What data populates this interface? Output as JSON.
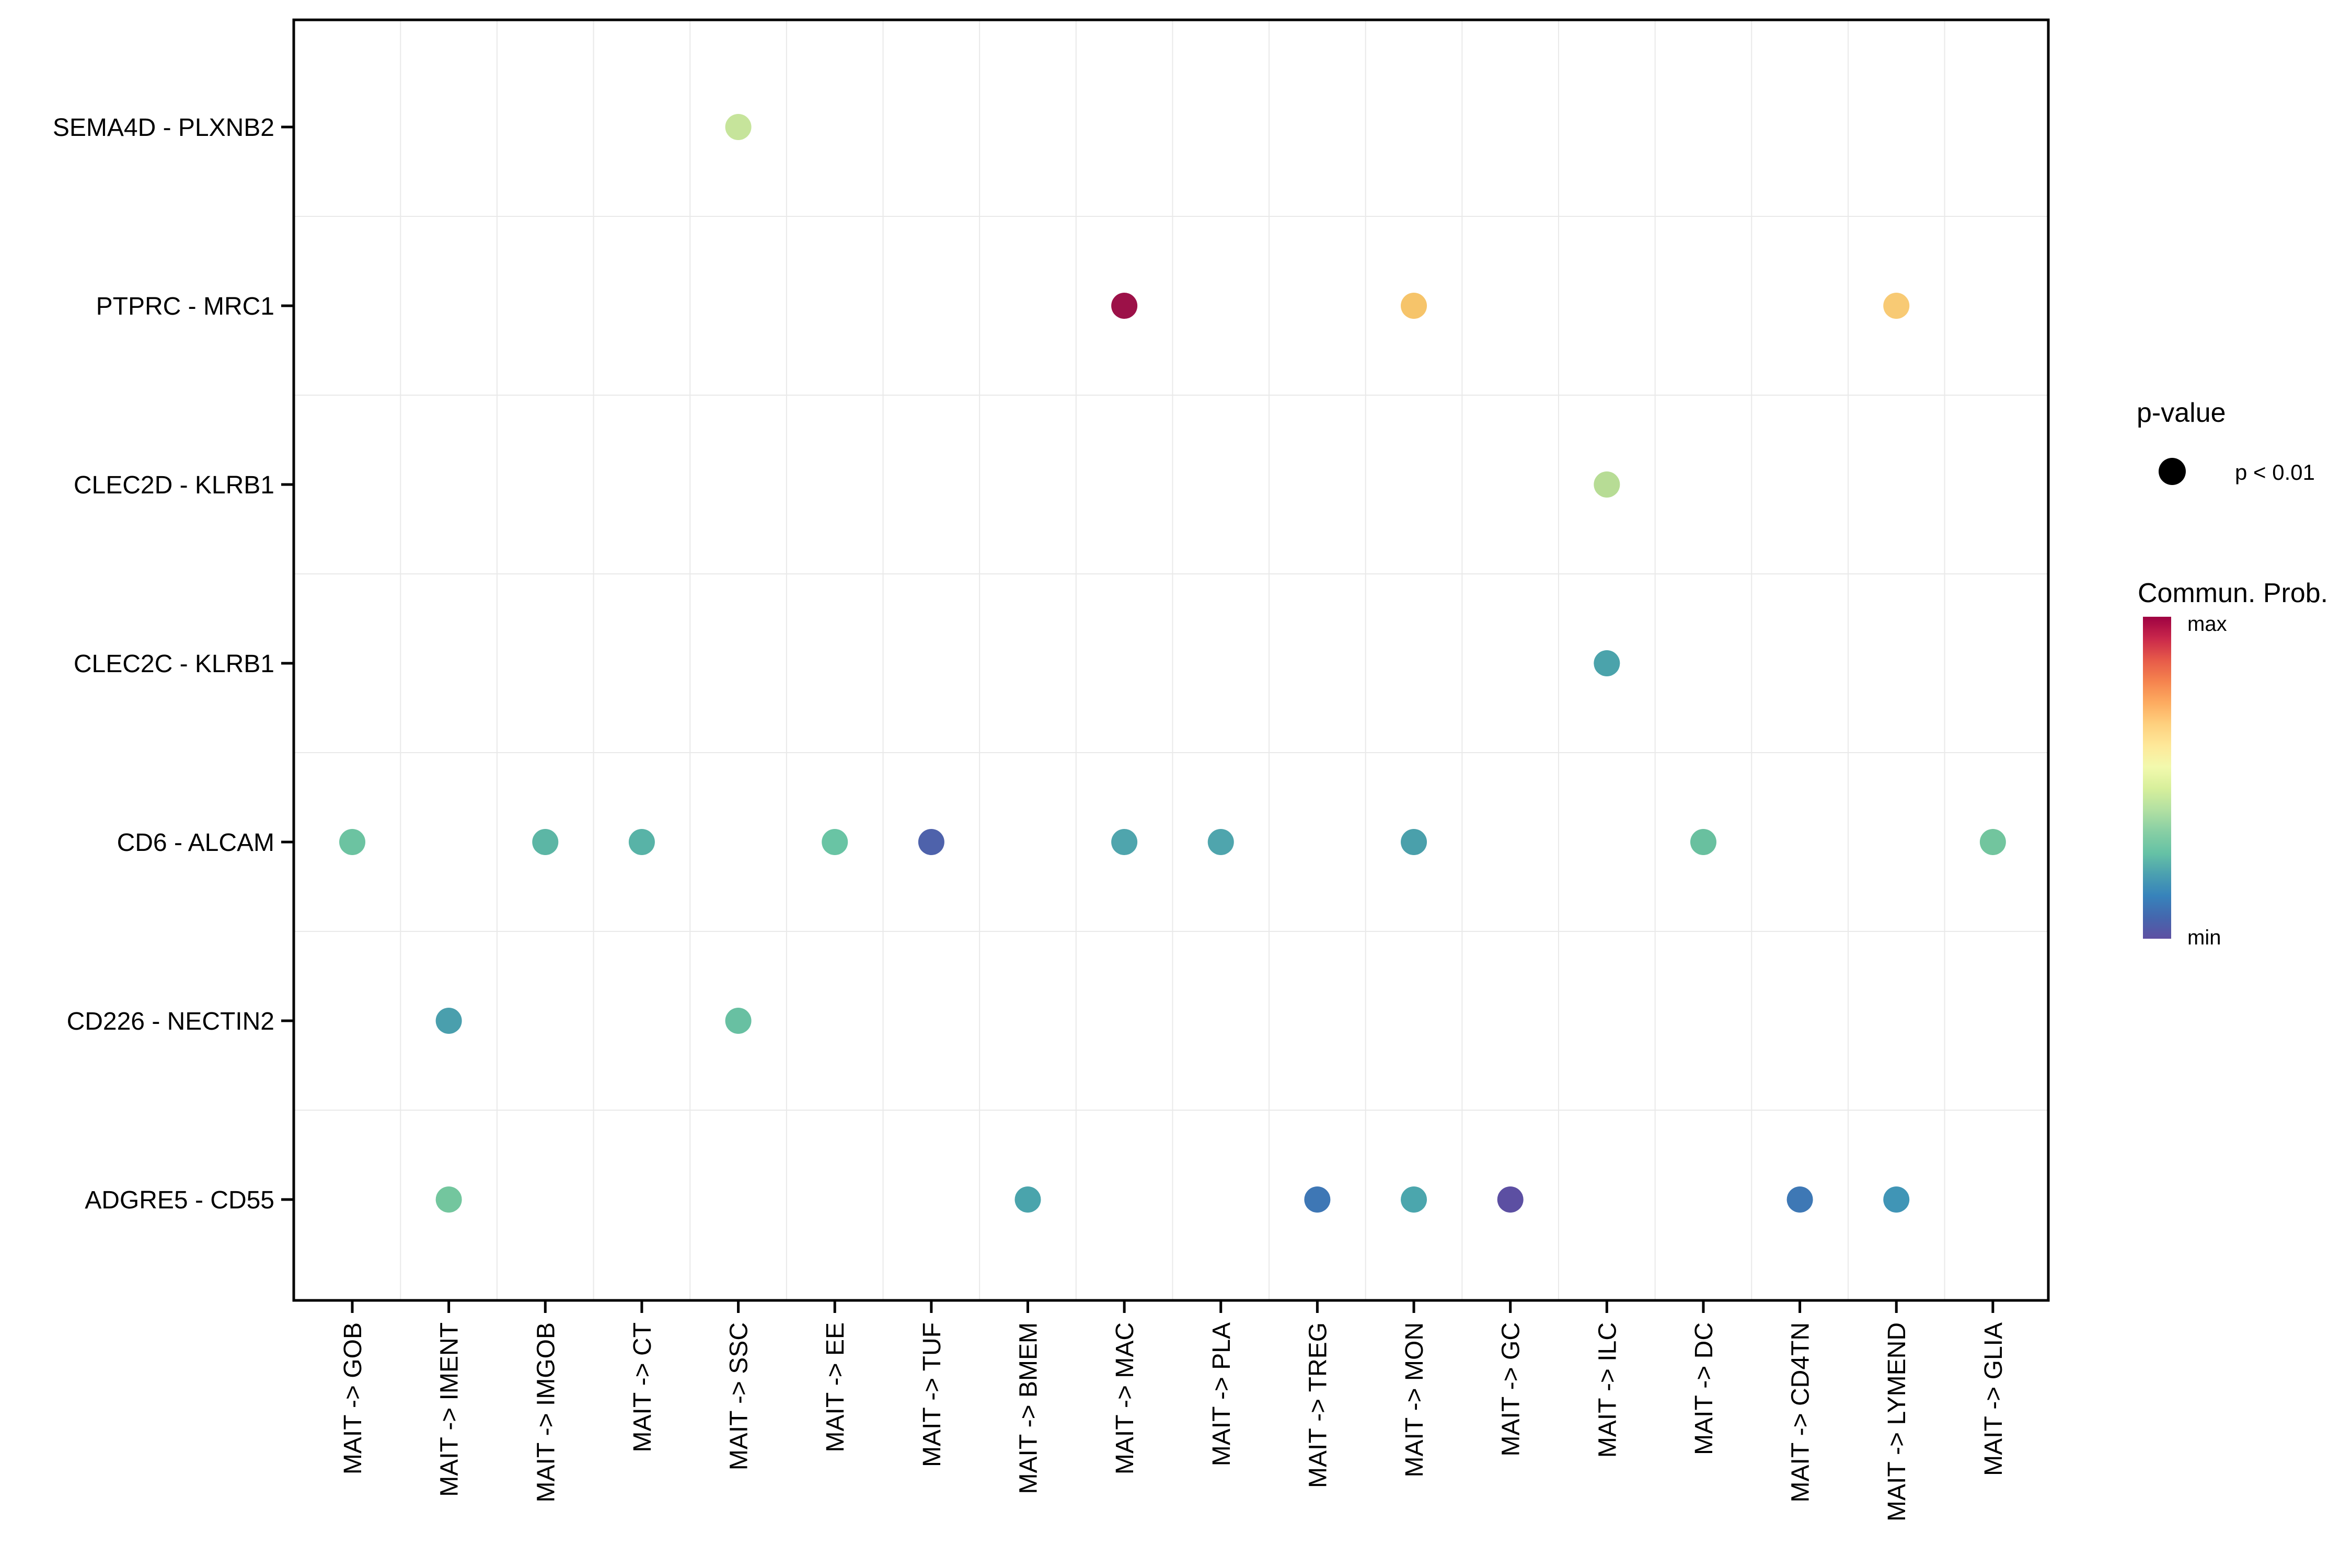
{
  "chart_data": {
    "type": "scatter",
    "title": "",
    "xlabel": "",
    "ylabel": "",
    "x_categories": [
      "MAIT -> GOB",
      "MAIT -> IMENT",
      "MAIT -> IMGOB",
      "MAIT -> CT",
      "MAIT -> SSC",
      "MAIT -> EE",
      "MAIT -> TUF",
      "MAIT -> BMEM",
      "MAIT -> MAC",
      "MAIT -> PLA",
      "MAIT -> TREG",
      "MAIT -> MON",
      "MAIT -> GC",
      "MAIT -> ILC",
      "MAIT -> DC",
      "MAIT -> CD4TN",
      "MAIT -> LYMEND",
      "MAIT -> GLIA"
    ],
    "y_categories": [
      "SEMA4D - PLXNB2",
      "PTPRC - MRC1",
      "CLEC2D - KLRB1",
      "CLEC2C - KLRB1",
      "CD6 - ALCAM",
      "CD226 - NECTIN2",
      "ADGRE5 - CD55"
    ],
    "grid": true,
    "colormap": "Spectral reversed (min blue-purple -> max dark red)",
    "legend_position": "right",
    "dot_size_meaning": "p < 0.01",
    "points": [
      {
        "x": "MAIT -> SSC",
        "y": "SEMA4D - PLXNB2",
        "color": "#c6e49b",
        "prob_norm": 0.62,
        "p": "p < 0.01"
      },
      {
        "x": "MAIT -> MAC",
        "y": "PTPRC - MRC1",
        "color": "#9c1148",
        "prob_norm": 1.0,
        "p": "p < 0.01"
      },
      {
        "x": "MAIT -> MON",
        "y": "PTPRC - MRC1",
        "color": "#f6c46a",
        "prob_norm": 0.78,
        "p": "p < 0.01"
      },
      {
        "x": "MAIT -> LYMEND",
        "y": "PTPRC - MRC1",
        "color": "#f8ca74",
        "prob_norm": 0.76,
        "p": "p < 0.01"
      },
      {
        "x": "MAIT -> ILC",
        "y": "CLEC2D - KLRB1",
        "color": "#b7dc95",
        "prob_norm": 0.57,
        "p": "p < 0.01"
      },
      {
        "x": "MAIT -> ILC",
        "y": "CLEC2C - KLRB1",
        "color": "#4ba3ab",
        "prob_norm": 0.24,
        "p": "p < 0.01"
      },
      {
        "x": "MAIT -> GOB",
        "y": "CD6 - ALCAM",
        "color": "#6cc3a1",
        "prob_norm": 0.38,
        "p": "p < 0.01"
      },
      {
        "x": "MAIT -> IMGOB",
        "y": "CD6 - ALCAM",
        "color": "#5cb6a5",
        "prob_norm": 0.32,
        "p": "p < 0.01"
      },
      {
        "x": "MAIT -> CT",
        "y": "CD6 - ALCAM",
        "color": "#58b3a7",
        "prob_norm": 0.3,
        "p": "p < 0.01"
      },
      {
        "x": "MAIT -> EE",
        "y": "CD6 - ALCAM",
        "color": "#69c4a4",
        "prob_norm": 0.37,
        "p": "p < 0.01"
      },
      {
        "x": "MAIT -> TUF",
        "y": "CD6 - ALCAM",
        "color": "#4e62ab",
        "prob_norm": 0.05,
        "p": "p < 0.01"
      },
      {
        "x": "MAIT -> MAC",
        "y": "CD6 - ALCAM",
        "color": "#4fa5ad",
        "prob_norm": 0.25,
        "p": "p < 0.01"
      },
      {
        "x": "MAIT -> PLA",
        "y": "CD6 - ALCAM",
        "color": "#4fa5ad",
        "prob_norm": 0.25,
        "p": "p < 0.01"
      },
      {
        "x": "MAIT -> MON",
        "y": "CD6 - ALCAM",
        "color": "#4aa0ab",
        "prob_norm": 0.23,
        "p": "p < 0.01"
      },
      {
        "x": "MAIT -> DC",
        "y": "CD6 - ALCAM",
        "color": "#69c09f",
        "prob_norm": 0.37,
        "p": "p < 0.01"
      },
      {
        "x": "MAIT -> GLIA",
        "y": "CD6 - ALCAM",
        "color": "#72c59e",
        "prob_norm": 0.39,
        "p": "p < 0.01"
      },
      {
        "x": "MAIT -> IMENT",
        "y": "CD226 - NECTIN2",
        "color": "#4a9fad",
        "prob_norm": 0.22,
        "p": "p < 0.01"
      },
      {
        "x": "MAIT -> SSC",
        "y": "CD226 - NECTIN2",
        "color": "#68c0a2",
        "prob_norm": 0.36,
        "p": "p < 0.01"
      },
      {
        "x": "MAIT -> IMENT",
        "y": "ADGRE5 - CD55",
        "color": "#73c69e",
        "prob_norm": 0.39,
        "p": "p < 0.01"
      },
      {
        "x": "MAIT -> BMEM",
        "y": "ADGRE5 - CD55",
        "color": "#4aa4ac",
        "prob_norm": 0.24,
        "p": "p < 0.01"
      },
      {
        "x": "MAIT -> TREG",
        "y": "ADGRE5 - CD55",
        "color": "#3e77b5",
        "prob_norm": 0.12,
        "p": "p < 0.01"
      },
      {
        "x": "MAIT -> MON",
        "y": "ADGRE5 - CD55",
        "color": "#4ba6ad",
        "prob_norm": 0.24,
        "p": "p < 0.01"
      },
      {
        "x": "MAIT -> GC",
        "y": "ADGRE5 - CD55",
        "color": "#5c4fa2",
        "prob_norm": 0.02,
        "p": "p < 0.01"
      },
      {
        "x": "MAIT -> CD4TN",
        "y": "ADGRE5 - CD55",
        "color": "#3e78b5",
        "prob_norm": 0.12,
        "p": "p < 0.01"
      },
      {
        "x": "MAIT -> LYMEND",
        "y": "ADGRE5 - CD55",
        "color": "#4095b6",
        "prob_norm": 0.15,
        "p": "p < 0.01"
      }
    ]
  },
  "legend": {
    "pvalue_title": "p-value",
    "pvalue_item_label": "p < 0.01",
    "pvalue_dot_color": "#000000",
    "colorbar_title": "Commun. Prob.",
    "colorbar_max_label": "max",
    "colorbar_min_label": "min",
    "colorbar_colors": [
      "#9e0142",
      "#c9274b",
      "#e65949",
      "#f5834e",
      "#fdab60",
      "#fed07e",
      "#fee899",
      "#f2f9ad",
      "#d7ef9b",
      "#b2e0a2",
      "#88cfa4",
      "#66c2a5",
      "#4ba0b0",
      "#3783bb",
      "#4467ae",
      "#5e4fa2"
    ]
  }
}
